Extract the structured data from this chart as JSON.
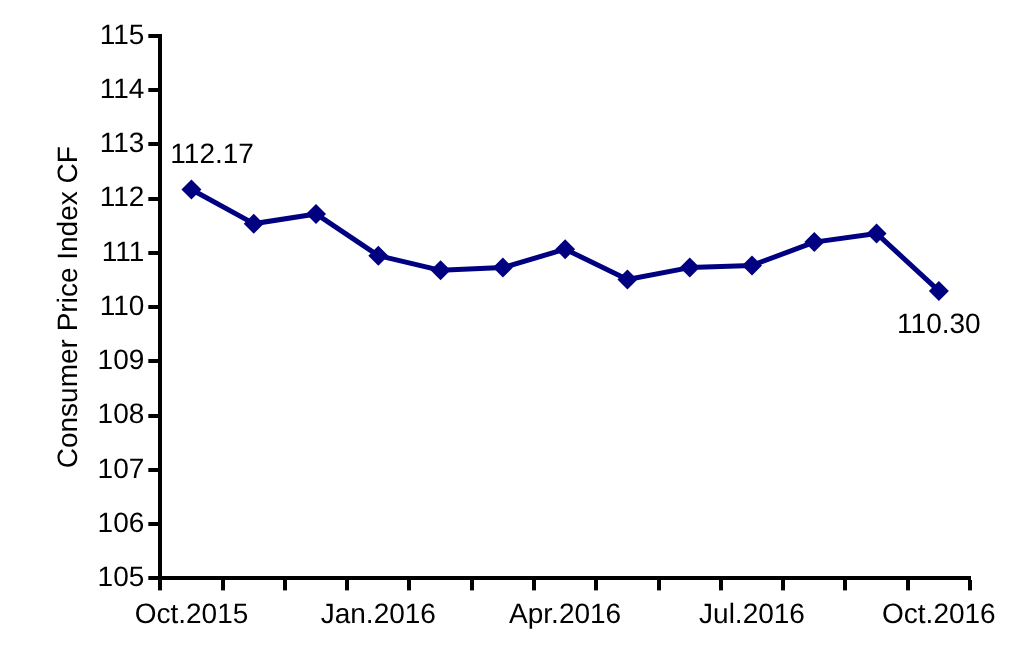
{
  "chart_data": {
    "type": "line",
    "ylabel": "Consumer Price Index CF",
    "categories": [
      "Oct.2015",
      null,
      null,
      "Jan.2016",
      null,
      null,
      "Apr.2016",
      null,
      null,
      "Jul.2016",
      null,
      null,
      "Oct.2016"
    ],
    "series": [
      {
        "color": "#000080",
        "values": [
          112.17,
          111.54,
          111.72,
          110.95,
          110.68,
          110.73,
          111.07,
          110.51,
          110.73,
          110.77,
          111.2,
          111.36,
          110.3
        ],
        "value_labels": [
          "112.17",
          null,
          null,
          null,
          null,
          null,
          null,
          null,
          null,
          null,
          null,
          null,
          "110.30"
        ]
      }
    ],
    "ylim": [
      105,
      115
    ],
    "yticks": [
      105,
      106,
      107,
      108,
      109,
      110,
      111,
      112,
      113,
      114,
      115
    ],
    "grid": false,
    "legend": false,
    "marker": "diamond",
    "line_style": "solid"
  }
}
